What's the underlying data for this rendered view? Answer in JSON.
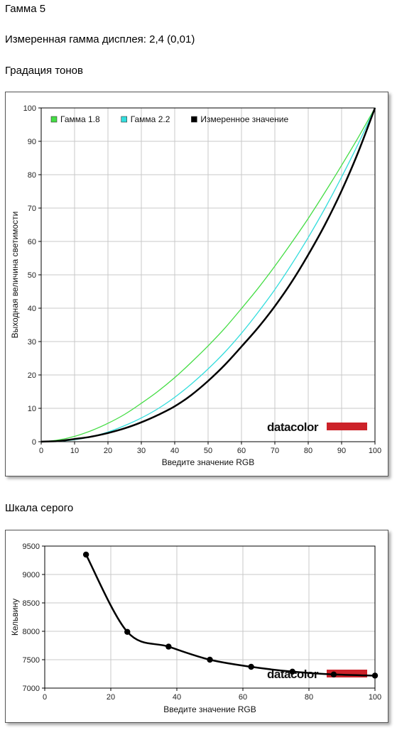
{
  "page": {
    "title": "Гамма 5",
    "measured_gamma": "Измеренная гамма дисплея: 2,4 (0,01)",
    "tone_heading": "Градация тонов",
    "gray_heading": "Шкала серого",
    "brand": "datacolor",
    "brand_color": "#cc2229"
  },
  "chart_data": [
    {
      "type": "line",
      "title": "",
      "xlabel": "Введите значение RGB",
      "ylabel": "Выходная величина светимости",
      "xlim": [
        0,
        100
      ],
      "ylim": [
        0,
        100
      ],
      "xticks": [
        0,
        10,
        20,
        30,
        40,
        50,
        60,
        70,
        80,
        90,
        100
      ],
      "yticks": [
        0,
        10,
        20,
        30,
        40,
        50,
        60,
        70,
        80,
        90,
        100
      ],
      "grid": true,
      "legend": "top-left",
      "series": [
        {
          "name": "Гамма 1.8",
          "color": "#44dd44",
          "x": [
            0,
            5,
            10,
            15,
            20,
            25,
            30,
            35,
            40,
            45,
            50,
            55,
            60,
            65,
            70,
            75,
            80,
            85,
            90,
            95,
            100
          ],
          "y": [
            0,
            0.5,
            1.6,
            3.3,
            5.5,
            8.2,
            11.5,
            15.1,
            19.2,
            23.8,
            28.7,
            34.0,
            39.9,
            46.0,
            52.6,
            59.6,
            66.9,
            74.7,
            82.8,
            91.2,
            100
          ]
        },
        {
          "name": "Гамма 2.2",
          "color": "#33dddd",
          "x": [
            0,
            5,
            10,
            15,
            20,
            25,
            30,
            35,
            40,
            45,
            50,
            55,
            60,
            65,
            70,
            75,
            80,
            85,
            90,
            95,
            100
          ],
          "y": [
            0,
            0.1,
            0.6,
            1.5,
            2.9,
            4.8,
            7.1,
            9.9,
            13.3,
            17.3,
            21.8,
            26.8,
            32.5,
            38.8,
            45.6,
            53.1,
            61.2,
            69.9,
            79.3,
            89.3,
            100
          ]
        },
        {
          "name": "Измеренное значение",
          "color": "#000000",
          "x": [
            0,
            5,
            10,
            15,
            20,
            25,
            30,
            35,
            40,
            45,
            50,
            55,
            60,
            65,
            70,
            75,
            80,
            85,
            90,
            95,
            100
          ],
          "y": [
            0,
            0.2,
            0.8,
            1.5,
            2.6,
            4.0,
            5.8,
            8.0,
            10.6,
            14.0,
            18.2,
            23.0,
            28.5,
            34.2,
            40.6,
            47.8,
            56.0,
            65.0,
            75.2,
            86.8,
            100
          ]
        }
      ]
    },
    {
      "type": "line",
      "title": "",
      "xlabel": "Введите значение RGB",
      "ylabel": "Кельвину",
      "xlim": [
        0,
        100
      ],
      "ylim": [
        7000,
        9500
      ],
      "xticks": [
        0,
        20,
        40,
        60,
        80,
        100
      ],
      "yticks": [
        7000,
        7500,
        8000,
        8500,
        9000,
        9500
      ],
      "grid": true,
      "series": [
        {
          "color": "#000000",
          "x": [
            12.5,
            25,
            37.5,
            50,
            62.5,
            75,
            87.5,
            100
          ],
          "y": [
            9350,
            7990,
            7730,
            7500,
            7375,
            7290,
            7240,
            7220
          ]
        }
      ]
    }
  ]
}
